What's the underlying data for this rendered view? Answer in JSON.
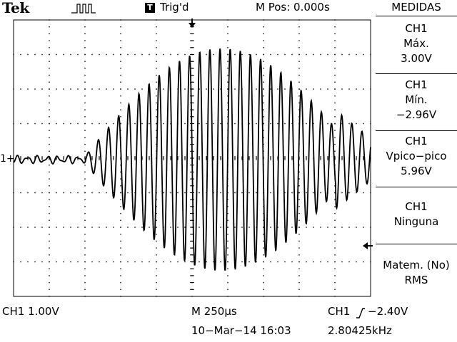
{
  "header": {
    "brand": "Tek",
    "acquire_icon": "pulse-icon",
    "trigger_badge": "T",
    "trigger_status": "Trig'd",
    "main_position": "M Pos: 0.000s"
  },
  "menu": {
    "title": "MEDIDAS",
    "items": [
      {
        "source": "CH1",
        "type": "Máx.",
        "value": "3.00V"
      },
      {
        "source": "CH1",
        "type": "Mín.",
        "value": "−2.96V"
      },
      {
        "source": "CH1",
        "type": "Vpico−pico",
        "value": "5.96V"
      },
      {
        "source": "CH1",
        "type": "Ninguna",
        "value": ""
      },
      {
        "source": "",
        "type": "Matem. (No)",
        "value": "RMS"
      }
    ]
  },
  "screen": {
    "channel_marker": "1+",
    "grid_divisions": {
      "horizontal": 10,
      "vertical": 8
    },
    "trace_color": "#000000",
    "background": "#ffffff"
  },
  "footer": {
    "ch1_scale": "CH1  1.00V",
    "timebase": "M 250µs",
    "trigger_source": "CH1",
    "trigger_slope_icon": "rising-edge-icon",
    "trigger_level": "−2.40V",
    "datetime": "10−Mar−14 16:03",
    "frequency": "2.80425kHz"
  }
}
